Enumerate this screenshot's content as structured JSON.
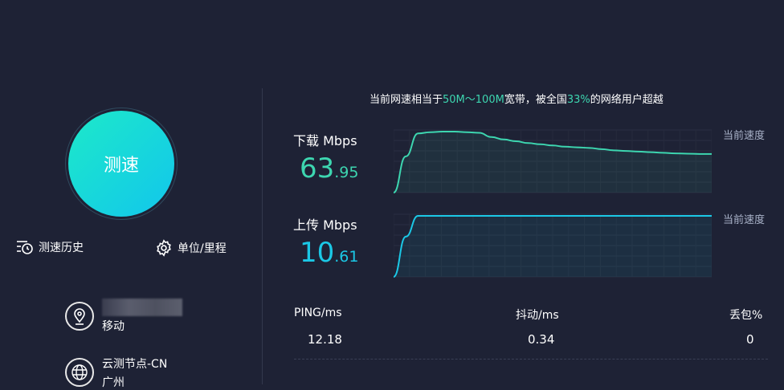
{
  "speed_button": {
    "label": "测速"
  },
  "links": {
    "history": "测速历史",
    "units": "单位/里程"
  },
  "isp": {
    "line2": "移动"
  },
  "node": {
    "line1": "云测节点-CN",
    "line2": "广州"
  },
  "summary": {
    "prefix": "当前网速相当于",
    "range": "50M～100M",
    "mid": "宽带，被全国",
    "percent": "33%",
    "suffix": "的网络用户超越"
  },
  "download": {
    "label": "下载 Mbps",
    "int": "63",
    "dec": ".95",
    "current_label": "当前速度",
    "color": "#3dd6b0"
  },
  "upload": {
    "label": "上传 Mbps",
    "int": "10",
    "dec": ".61",
    "current_label": "当前速度",
    "color": "#1bc8e6"
  },
  "stats": [
    {
      "label": "PING/ms",
      "value": "12.18"
    },
    {
      "label": "抖动/ms",
      "value": "0.34"
    },
    {
      "label": "丢包%",
      "value": "0"
    }
  ],
  "chart_data": [
    {
      "type": "line",
      "name": "download",
      "values": [
        0,
        60,
        98,
        100,
        101,
        101,
        100,
        99,
        92,
        88,
        85,
        82,
        80,
        78,
        76,
        75,
        74,
        72,
        70,
        69,
        68,
        67,
        66,
        65,
        64.5,
        64,
        63.95
      ]
    },
    {
      "type": "line",
      "name": "upload",
      "values": [
        0,
        7,
        10.61,
        10.61,
        10.61,
        10.61,
        10.61,
        10.61,
        10.61,
        10.61,
        10.61,
        10.61,
        10.61,
        10.61,
        10.61,
        10.61,
        10.61,
        10.61,
        10.61,
        10.61,
        10.61,
        10.61,
        10.61,
        10.61,
        10.61,
        10.61,
        10.61
      ]
    }
  ]
}
